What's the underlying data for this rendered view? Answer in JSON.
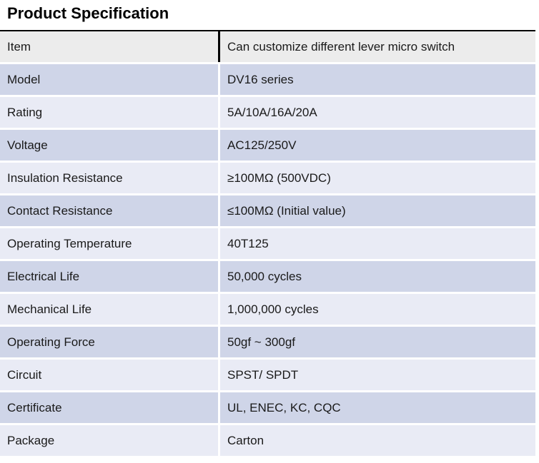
{
  "title": "Product Specification",
  "colors": {
    "header_row_bg": "#ececec",
    "row_dark_bg": "#cfd5e8",
    "row_light_bg": "#e9ebf5",
    "table_top_border": "#000000",
    "text": "#1a1a1a"
  },
  "table": {
    "rows": [
      {
        "label": "Item",
        "value": "Can customize different lever micro switch"
      },
      {
        "label": "Model",
        "value": "DV16 series"
      },
      {
        "label": "Rating",
        "value": "5A/10A/16A/20A"
      },
      {
        "label": "Voltage",
        "value": "AC125/250V"
      },
      {
        "label": "Insulation Resistance",
        "value": "≥100MΩ (500VDC)"
      },
      {
        "label": "Contact Resistance",
        "value": "≤100MΩ (Initial value)"
      },
      {
        "label": "Operating Temperature",
        "value": "40T125"
      },
      {
        "label": "Electrical Life",
        "value": "50,000 cycles"
      },
      {
        "label": "Mechanical Life",
        "value": "1,000,000 cycles"
      },
      {
        "label": "Operating Force",
        "value": "50gf ~ 300gf"
      },
      {
        "label": "Circuit",
        "value": "SPST/ SPDT"
      },
      {
        "label": "Certificate",
        "value": "UL, ENEC, KC, CQC"
      },
      {
        "label": "Package",
        "value": "Carton"
      }
    ]
  }
}
